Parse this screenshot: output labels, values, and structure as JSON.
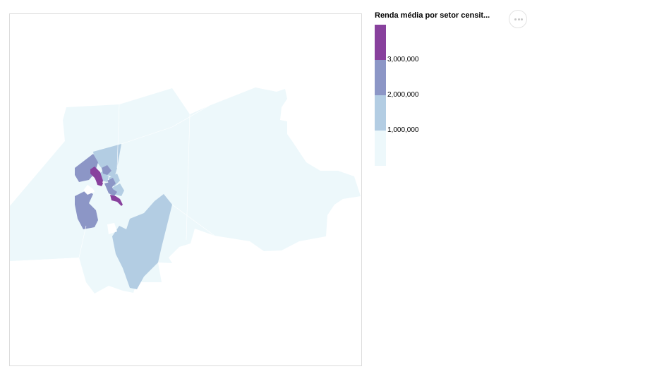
{
  "legend": {
    "title": "Renda média por setor censit...",
    "labels": [
      "3,000,000",
      "2,000,000",
      "1,000,000"
    ],
    "colors": [
      "#88419d",
      "#8c96c6",
      "#b3cde3",
      "#edf8fb"
    ]
  },
  "menu": {
    "icon": "more-horizontal-icon"
  },
  "map": {
    "colors": {
      "lowest": "#edf8fb",
      "low": "#b3cde3",
      "mid": "#8c96c6",
      "high": "#88419d"
    }
  }
}
